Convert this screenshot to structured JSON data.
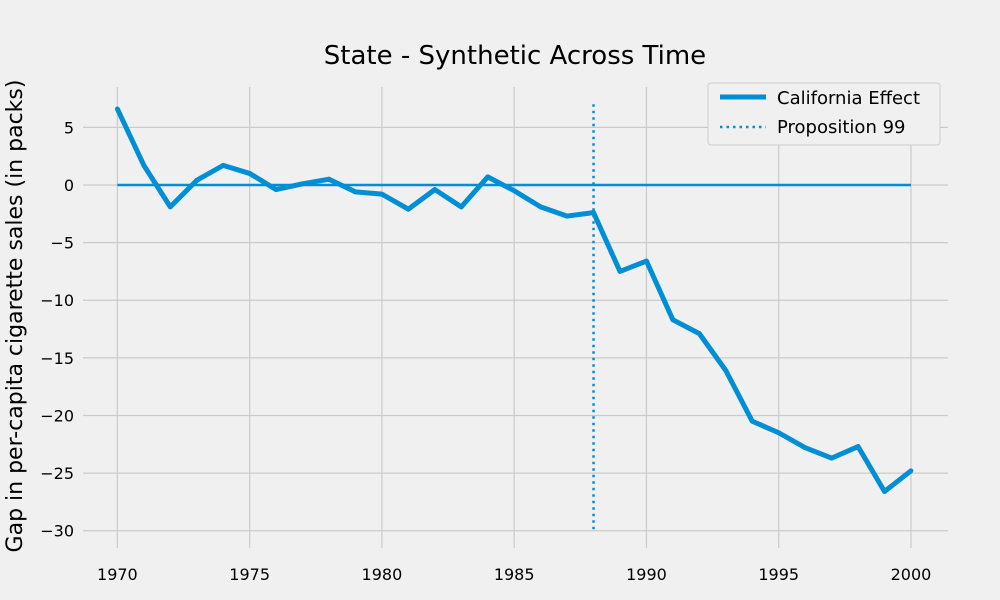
{
  "chart_data": {
    "type": "line",
    "title": "State - Synthetic Across Time",
    "xlabel": "",
    "ylabel": "Gap in per-capita cigarette sales (in packs)",
    "xlim": [
      1968.7,
      2001.4
    ],
    "ylim": [
      -31.5,
      8.5
    ],
    "xticks": [
      1970,
      1975,
      1980,
      1985,
      1990,
      1995,
      2000
    ],
    "yticks": [
      -30,
      -25,
      -20,
      -15,
      -10,
      -5,
      0,
      5
    ],
    "x": [
      1970,
      1971,
      1972,
      1973,
      1974,
      1975,
      1976,
      1977,
      1978,
      1979,
      1980,
      1981,
      1982,
      1983,
      1984,
      1985,
      1986,
      1987,
      1988,
      1989,
      1990,
      1991,
      1992,
      1993,
      1994,
      1995,
      1996,
      1997,
      1998,
      1999,
      2000
    ],
    "series": [
      {
        "name": "California Effect",
        "color": "#008fd5",
        "values": [
          6.6,
          1.7,
          -1.9,
          0.4,
          1.7,
          1.0,
          -0.4,
          0.1,
          0.5,
          -0.6,
          -0.8,
          -2.1,
          -0.4,
          -1.9,
          0.7,
          -0.5,
          -1.9,
          -2.7,
          -2.4,
          -7.5,
          -6.6,
          -11.7,
          -12.9,
          -16.1,
          -20.5,
          -21.5,
          -22.8,
          -23.7,
          -22.7,
          -26.6,
          -24.8
        ]
      }
    ],
    "hline": {
      "y": 0,
      "xmin": 1970,
      "xmax": 2000,
      "color": "#008fd5"
    },
    "vline": {
      "name": "Proposition 99",
      "x": 1988,
      "ymin": -30,
      "ymax": 7,
      "color": "#008fd5",
      "style": "dotted"
    },
    "legend": {
      "placement": "top-right",
      "entries": [
        "California Effect",
        "Proposition 99"
      ]
    },
    "grid": true
  }
}
